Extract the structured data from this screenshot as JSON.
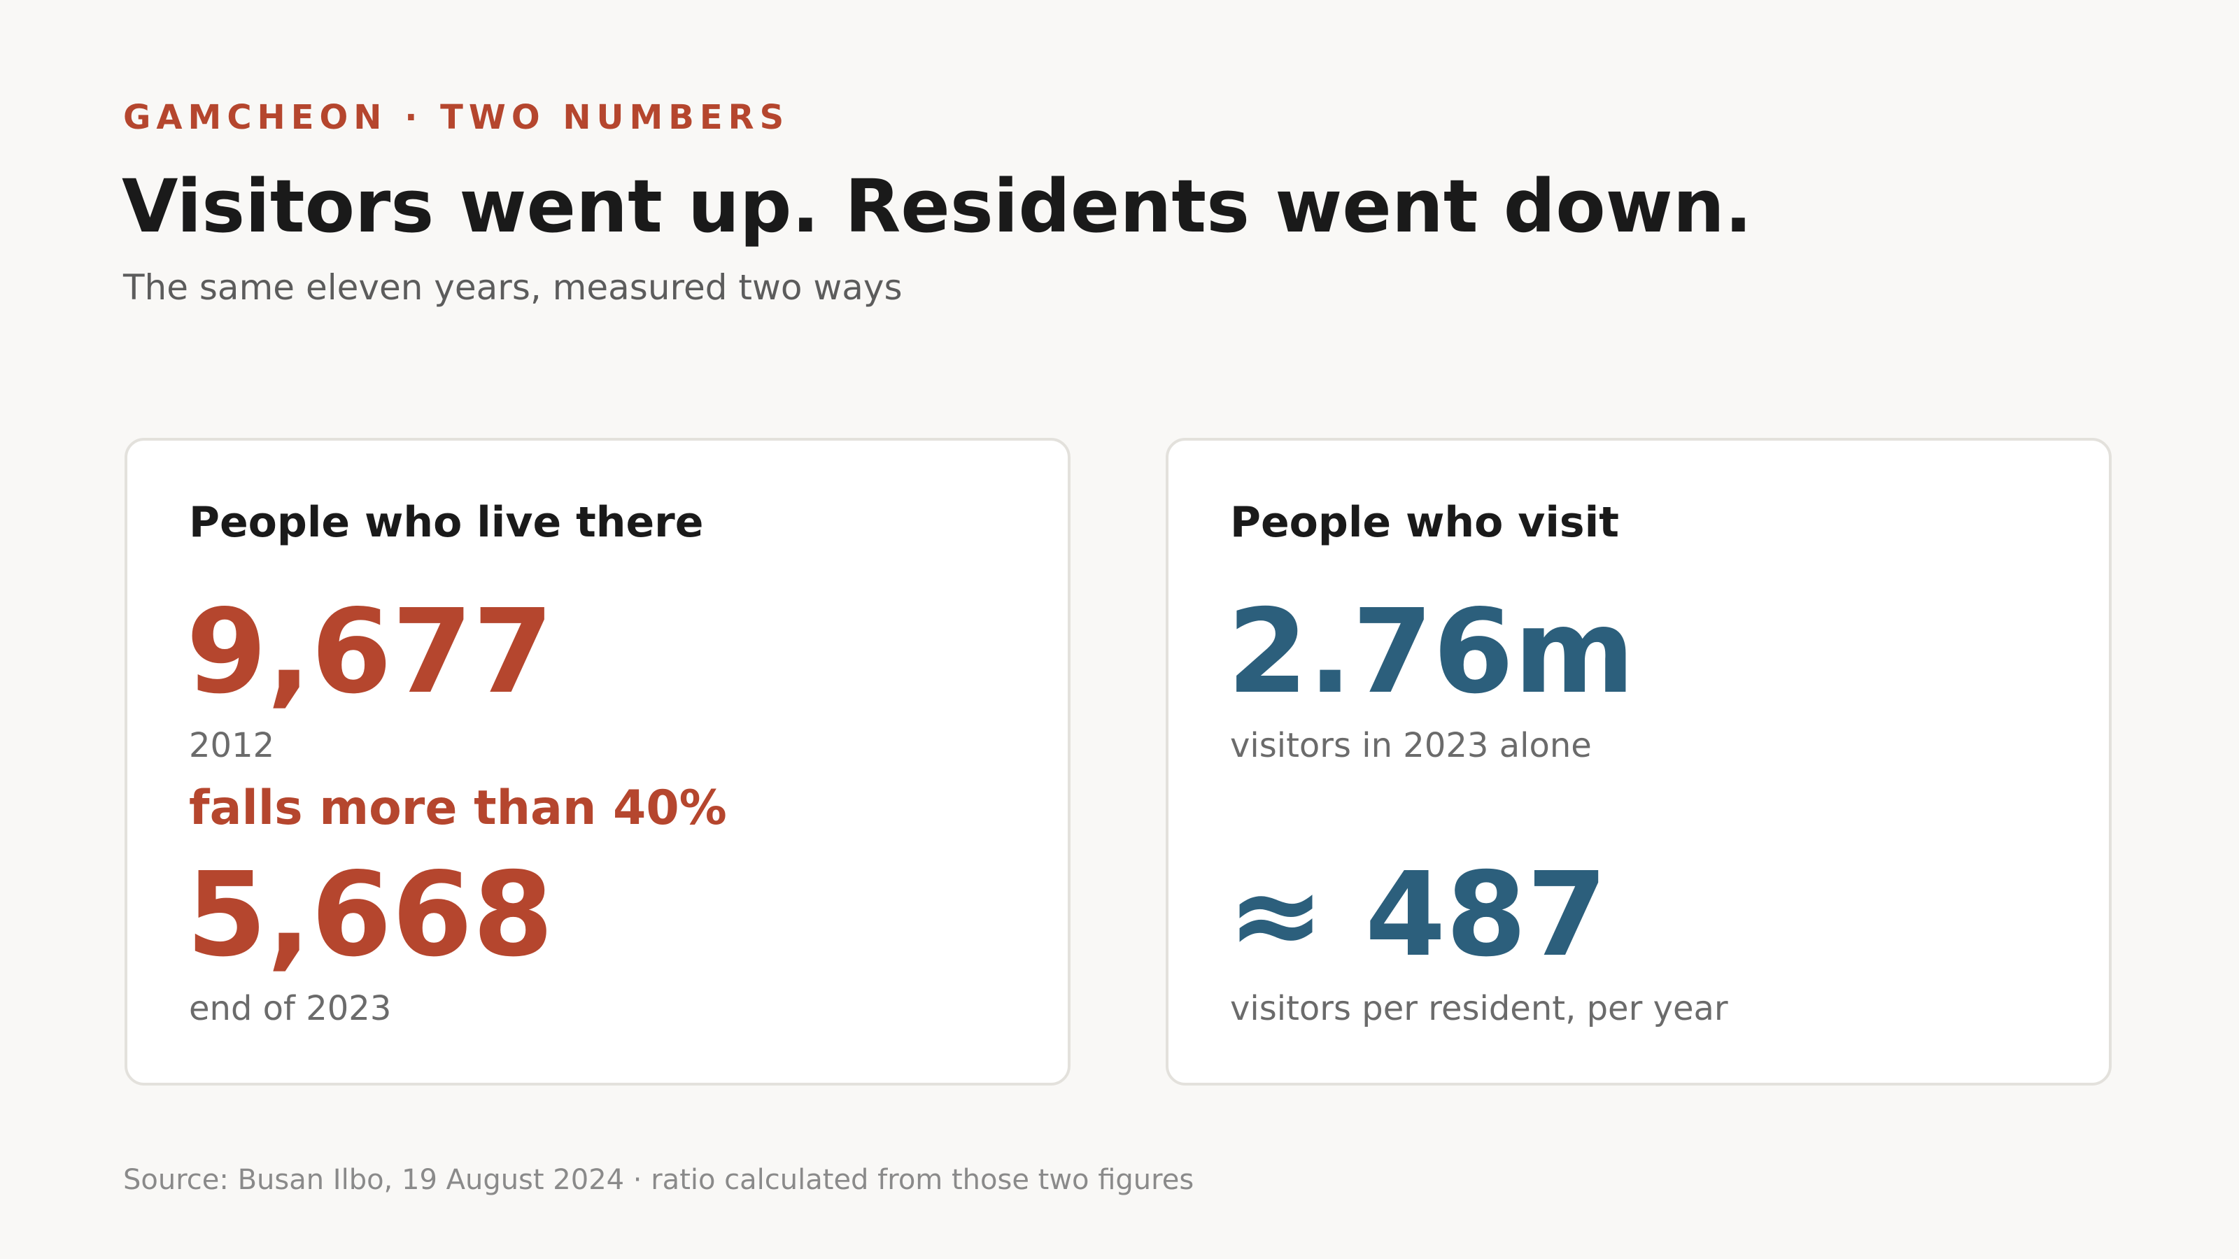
{
  "kicker": "GAMCHEON · TWO NUMBERS",
  "headline": "Visitors went up. Residents went down.",
  "subtitle": "The same eleven years, measured two ways",
  "residents_card": {
    "title": "People who live there",
    "value_start": "9,677",
    "label_start": "2012",
    "change": "falls more than 40%",
    "value_end": "5,668",
    "label_end": "end of 2023"
  },
  "visitors_card": {
    "title": "People who visit",
    "value_visitors": "2.76m",
    "label_visitors": "visitors in 2023 alone",
    "value_ratio": "≈ 487",
    "label_ratio": "visitors per resident, per year"
  },
  "source": "Source: Busan Ilbo, 19 August 2024 · ratio calculated from those two figures",
  "colors": {
    "residents_accent": "#b5462e",
    "visitors_accent": "#2c5f7c",
    "background": "#f9f8f6"
  }
}
